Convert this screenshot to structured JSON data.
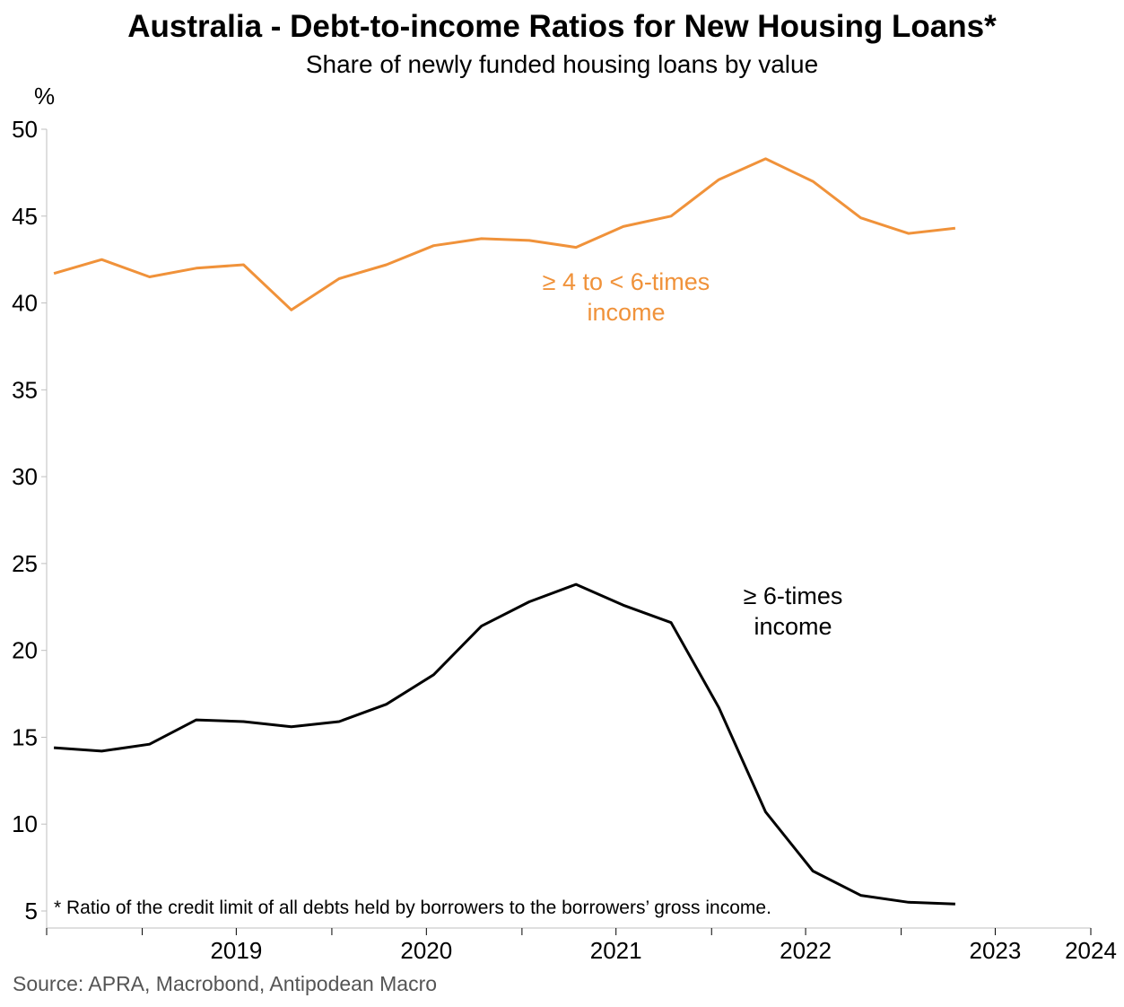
{
  "chart_data": {
    "type": "line",
    "title": "Australia - Debt-to-income Ratios for New Housing Loans*",
    "subtitle": "Share of newly funded housing loans by value",
    "ylabel": "%",
    "ylim": [
      5,
      50
    ],
    "yticks": [
      5,
      10,
      15,
      20,
      25,
      30,
      35,
      40,
      45,
      50
    ],
    "xlim": [
      "2018-07-01",
      "2024-01-01"
    ],
    "xtick_labels": [
      "2019",
      "2020",
      "2021",
      "2022",
      "2023",
      "2024"
    ],
    "x": [
      "2018-Q3",
      "2018-Q4",
      "2019-Q1",
      "2019-Q2",
      "2019-Q3",
      "2019-Q4",
      "2020-Q1",
      "2020-Q2",
      "2020-Q3",
      "2020-Q4",
      "2021-Q1",
      "2021-Q2",
      "2021-Q3",
      "2021-Q4",
      "2022-Q1",
      "2022-Q2",
      "2022-Q3",
      "2022-Q4",
      "2023-Q1",
      "2023-Q2"
    ],
    "series": [
      {
        "name": "≥ 4 to < 6-times income",
        "name_lines": [
          "≥ 4 to < 6-times",
          "income"
        ],
        "color": "#f0923a",
        "values": [
          41.7,
          42.5,
          41.5,
          42.0,
          42.2,
          39.6,
          41.4,
          42.2,
          43.3,
          43.7,
          43.6,
          43.2,
          44.4,
          45.0,
          47.1,
          48.3,
          47.0,
          44.9,
          44.0,
          44.3
        ]
      },
      {
        "name": "≥ 6-times income",
        "name_lines": [
          "≥ 6-times",
          "income"
        ],
        "color": "#000000",
        "values": [
          14.4,
          14.2,
          14.6,
          16.0,
          15.9,
          15.6,
          15.9,
          16.9,
          18.6,
          21.4,
          22.8,
          23.8,
          22.6,
          21.6,
          16.7,
          10.7,
          7.3,
          5.9,
          5.5,
          5.4
        ]
      }
    ],
    "footnote": "* Ratio of the credit limit of all debts held by borrowers to the borrowers’ gross income.",
    "source": "Source: APRA, Macrobond, Antipodean Macro",
    "grid": false
  }
}
